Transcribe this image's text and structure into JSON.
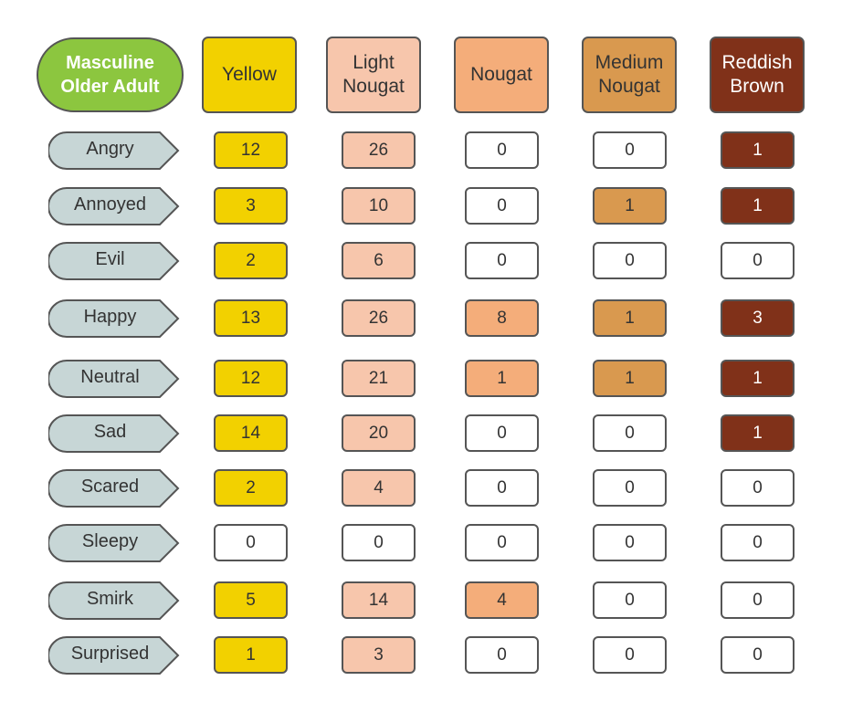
{
  "title": "Masculine\nOlder Adult",
  "columns": [
    {
      "label": "Yellow",
      "color": "#f2d100",
      "text_color": "#333333"
    },
    {
      "label": "Light\nNougat",
      "color": "#f7c6ac",
      "text_color": "#333333"
    },
    {
      "label": "Nougat",
      "color": "#f4ad7a",
      "text_color": "#333333"
    },
    {
      "label": "Medium\nNougat",
      "color": "#d9994f",
      "text_color": "#333333"
    },
    {
      "label": "Reddish\nBrown",
      "color": "#803119",
      "text_color": "#ffffff"
    }
  ],
  "rows": [
    {
      "label": "Angry",
      "values": [
        "12",
        "26",
        "0",
        "0",
        "1"
      ]
    },
    {
      "label": "Annoyed",
      "values": [
        "3",
        "10",
        "0",
        "1",
        "1"
      ]
    },
    {
      "label": "Evil",
      "values": [
        "2",
        "6",
        "0",
        "0",
        "0"
      ]
    },
    {
      "label": "Happy",
      "values": [
        "13",
        "26",
        "8",
        "1",
        "3"
      ]
    },
    {
      "label": "Neutral",
      "values": [
        "12",
        "21",
        "1",
        "1",
        "1"
      ]
    },
    {
      "label": "Sad",
      "values": [
        "14",
        "20",
        "0",
        "0",
        "1"
      ]
    },
    {
      "label": "Scared",
      "values": [
        "2",
        "4",
        "0",
        "0",
        "0"
      ]
    },
    {
      "label": "Sleepy",
      "values": [
        "0",
        "0",
        "0",
        "0",
        "0"
      ]
    },
    {
      "label": "Smirk",
      "values": [
        "5",
        "14",
        "4",
        "0",
        "0"
      ]
    },
    {
      "label": "Surprised",
      "values": [
        "1",
        "3",
        "0",
        "0",
        "0"
      ]
    }
  ],
  "colors": {
    "title_fill": "#8cc63f",
    "row_tag_fill": "#c7d6d6",
    "empty_cell_fill": "#ffffff",
    "border": "#555555"
  }
}
